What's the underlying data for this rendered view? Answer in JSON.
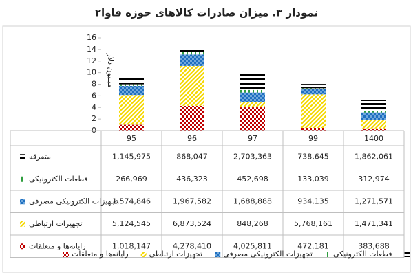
{
  "chart_data": {
    "type": "stacked-bar",
    "title": "نمودار ۳. میزان صادرات کالاهای حوزه فاوا۲",
    "y_label": "میلیون دلار",
    "categories": [
      "95",
      "96",
      "97",
      "99",
      "1400"
    ],
    "ylim": [
      0,
      16
    ],
    "yticks": [
      0,
      2,
      4,
      6,
      8,
      10,
      12,
      14,
      16
    ],
    "grid": false,
    "series": [
      {
        "name": "رایانه‌ها و متعلقات",
        "color": "#c00000",
        "values": [
          1.018147,
          4.27841,
          4.025811,
          0.472181,
          0.383688
        ],
        "value_labels": [
          "1,018,147",
          "4,278,410",
          "4,025,811",
          "472,181",
          "383,688"
        ]
      },
      {
        "name": "تجهیزات ارتباطی",
        "color": "#f5d800",
        "values": [
          5.124545,
          6.873524,
          0.848268,
          5.768161,
          1.471341
        ],
        "value_labels": [
          "5,124,545",
          "6,873,524",
          "848,268",
          "5,768,161",
          "1,471,341"
        ]
      },
      {
        "name": "تجهیزات الکترونیکی مصرفی",
        "color": "#1f6fc0",
        "values": [
          1.574846,
          1.967582,
          1.688888,
          0.934135,
          1.271571
        ],
        "value_labels": [
          "1,574,846",
          "1,967,582",
          "1,688,888",
          "934,135",
          "1,271,571"
        ]
      },
      {
        "name": "قطعات الکترونیکی",
        "color": "#2e9e3e",
        "values": [
          0.266969,
          0.436323,
          0.452698,
          0.133039,
          0.312974
        ],
        "value_labels": [
          "266,969",
          "436,323",
          "452,698",
          "133,039",
          "312,974"
        ]
      },
      {
        "name": "متفرقه",
        "color": "#000000",
        "values": [
          1.145975,
          0.868047,
          2.703363,
          0.738645,
          1.862061
        ],
        "value_labels": [
          "1,145,975",
          "868,047",
          "2,703,363",
          "738,645",
          "1,862,061"
        ]
      }
    ]
  }
}
